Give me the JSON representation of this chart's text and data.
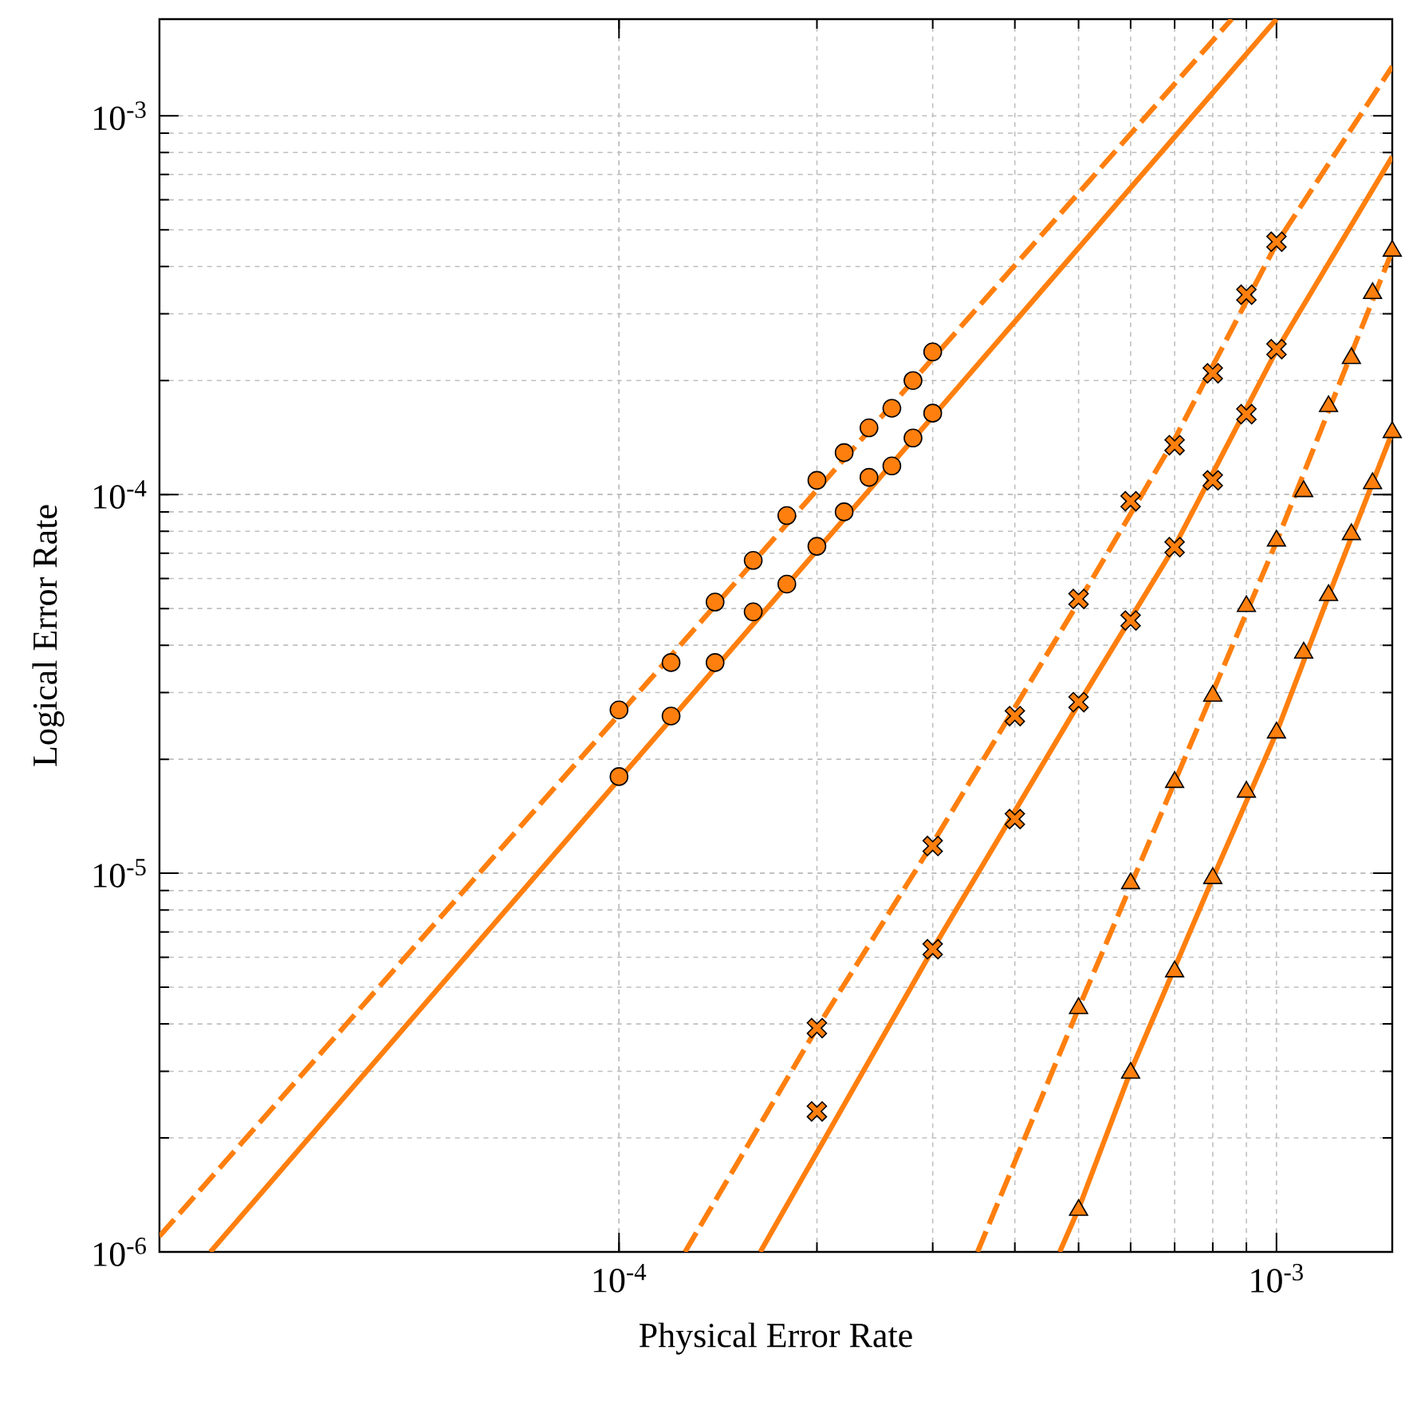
{
  "chart_data": {
    "type": "scatter",
    "xlabel": "Physical Error Rate",
    "ylabel": "Logical Error Rate",
    "log": "xy",
    "grid": true,
    "xlim": [
      2e-05,
      0.0015
    ],
    "ylim": [
      1e-06,
      0.0018
    ],
    "xticks": [
      {
        "value": 0.0001,
        "label": "10$^{-4}$"
      },
      {
        "value": 0.001,
        "label": "10$^{-3}$"
      }
    ],
    "yticks": [
      {
        "value": 1e-06,
        "label": "10$^{-6}$"
      },
      {
        "value": 1e-05,
        "label": "10$^{-5}$"
      },
      {
        "value": 0.0001,
        "label": "10$^{-4}$"
      },
      {
        "value": 0.001,
        "label": "10$^{-3}$"
      }
    ],
    "series": [
      {
        "type": "line",
        "color": "#ff7f0e",
        "line_style": "dashed",
        "marker": "none",
        "x": [
          2e-05,
          0.000855
        ],
        "values": [
          1.1e-06,
          0.0018
        ]
      },
      {
        "type": "line",
        "color": "#ff7f0e",
        "line_style": "solid",
        "marker": "none",
        "x": [
          2.39e-05,
          0.001
        ],
        "values": [
          1e-06,
          0.0018
        ]
      },
      {
        "type": "line",
        "color": "#ff7f0e",
        "line_style": "dashed",
        "marker": "none",
        "x": [
          0.000126,
          0.0002,
          0.0003,
          0.0005,
          0.0007,
          0.001,
          0.0015
        ],
        "values": [
          1e-06,
          3.9e-06,
          1.2e-05,
          5.2e-05,
          0.00014,
          0.00046,
          0.00135
        ]
      },
      {
        "type": "line",
        "color": "#ff7f0e",
        "line_style": "solid",
        "marker": "none",
        "x": [
          0.000164,
          0.0003,
          0.0005,
          0.0007,
          0.001,
          0.0015
        ],
        "values": [
          1e-06,
          6.3e-06,
          2.8e-05,
          7.3e-05,
          0.00024,
          0.00078
        ]
      },
      {
        "type": "line",
        "color": "#ff7f0e",
        "line_style": "dashed",
        "marker": "none",
        "x": [
          0.000351,
          0.0005,
          0.0007,
          0.001,
          0.0015
        ],
        "values": [
          1e-06,
          4.4e-06,
          1.74e-05,
          7.5e-05,
          0.00044
        ]
      },
      {
        "type": "line",
        "color": "#ff7f0e",
        "line_style": "solid",
        "marker": "none",
        "x": [
          0.000468,
          0.0005,
          0.0006,
          0.0008,
          0.001,
          0.0012,
          0.0015
        ],
        "values": [
          1e-06,
          1.3e-06,
          3e-06,
          9.7e-06,
          2.35e-05,
          5.4e-05,
          0.000146
        ]
      },
      {
        "color": "#ff7f0e",
        "marker": "circle",
        "x": [
          0.0001,
          0.00012,
          0.00014,
          0.00016,
          0.00018,
          0.0002,
          0.00022,
          0.00024,
          0.00026,
          0.00028,
          0.0003
        ],
        "values": [
          2.7e-05,
          3.6e-05,
          5.2e-05,
          6.7e-05,
          8.8e-05,
          0.000109,
          0.000129,
          0.00015,
          0.000169,
          0.0002,
          0.000238
        ]
      },
      {
        "color": "#ff7f0e",
        "marker": "circle",
        "x": [
          0.0001,
          0.00012,
          0.00014,
          0.00016,
          0.00018,
          0.0002,
          0.00022,
          0.00024,
          0.00026,
          0.00028,
          0.0003
        ],
        "values": [
          1.8e-05,
          2.6e-05,
          3.6e-05,
          4.9e-05,
          5.8e-05,
          7.3e-05,
          9e-05,
          0.000111,
          0.000119,
          0.000141,
          0.000164
        ]
      },
      {
        "color": "#ff7f0e",
        "marker": "cross",
        "x": [
          0.0002,
          0.0003,
          0.0004,
          0.0005,
          0.0006,
          0.0007,
          0.0008,
          0.0009,
          0.001
        ],
        "values": [
          3.9e-06,
          1.18e-05,
          2.6e-05,
          5.3e-05,
          9.6e-05,
          0.000135,
          0.000209,
          0.000337,
          0.000465
        ]
      },
      {
        "color": "#ff7f0e",
        "marker": "cross",
        "x": [
          0.0002,
          0.0003,
          0.0004,
          0.0005,
          0.0006,
          0.0007,
          0.0008,
          0.0009,
          0.001
        ],
        "values": [
          2.35e-06,
          6.3e-06,
          1.39e-05,
          2.83e-05,
          4.65e-05,
          7.26e-05,
          0.000109,
          0.000163,
          0.000242
        ]
      },
      {
        "color": "#ff7f0e",
        "marker": "triangle",
        "x": [
          0.0005,
          0.0006,
          0.0007,
          0.0008,
          0.0009,
          0.001,
          0.0011,
          0.0012,
          0.0013,
          0.0014,
          0.0015
        ],
        "values": [
          4.4e-06,
          9.4e-06,
          1.74e-05,
          2.94e-05,
          5.07e-05,
          7.55e-05,
          0.000102,
          0.000171,
          0.000229,
          0.00034,
          0.00044
        ]
      },
      {
        "color": "#ff7f0e",
        "marker": "triangle",
        "x": [
          0.0005,
          0.0006,
          0.0007,
          0.0008,
          0.0009,
          0.001,
          0.0011,
          0.0012,
          0.0013,
          0.0014,
          0.0015
        ],
        "values": [
          1.29e-06,
          2.97e-06,
          5.5e-06,
          9.7e-06,
          1.64e-05,
          2.35e-05,
          3.82e-05,
          5.42e-05,
          7.85e-05,
          0.000107,
          0.000146
        ]
      }
    ]
  }
}
